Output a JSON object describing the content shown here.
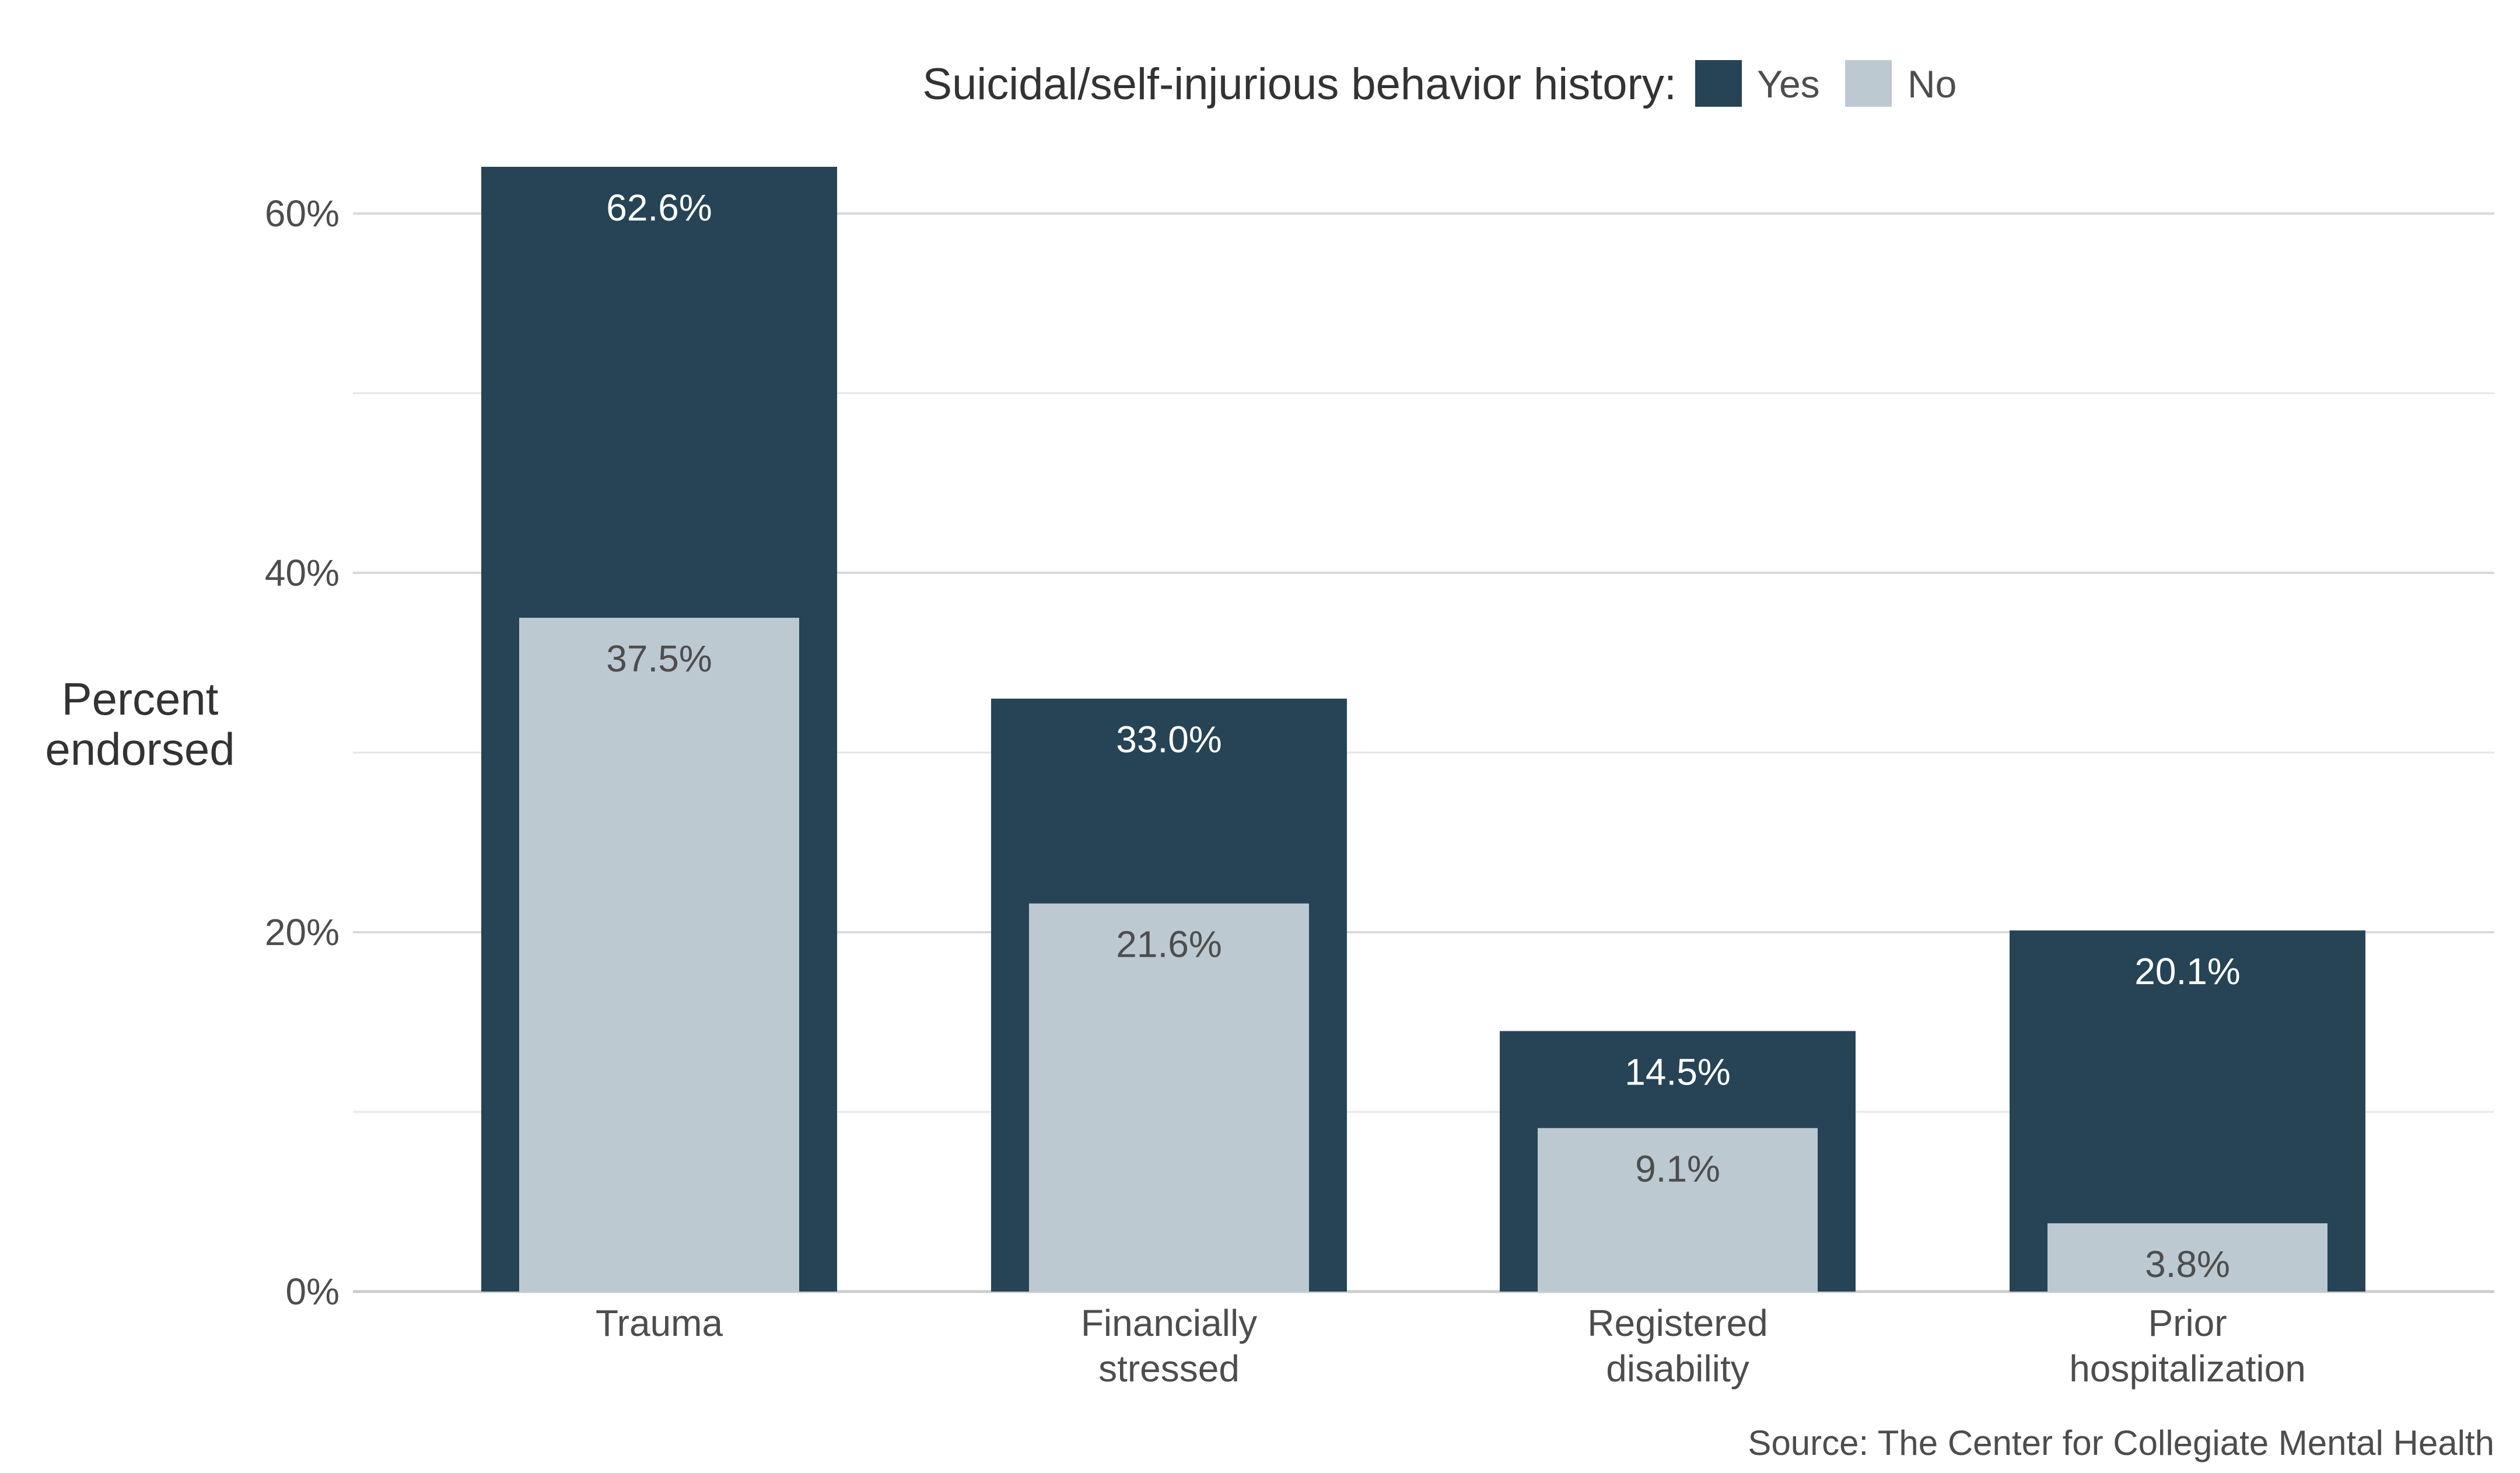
{
  "legend": {
    "title": "Suicidal/self-injurious behavior history:",
    "position": "top"
  },
  "source": "Source: The Center for Collegiate Mental Health",
  "colors": {
    "yes": "#264455",
    "no": "#bcc9d1",
    "grid": "#d9d9d9",
    "text": "#4d4d4d",
    "label_on_dark": "#ffffff",
    "label_on_light": "#4d4d4d"
  },
  "chart_data": {
    "type": "bar",
    "grouping": "overlapping",
    "categories": [
      "Trauma",
      "Financially\nstressed",
      "Registered\ndisability",
      "Prior\nhospitalization"
    ],
    "series": [
      {
        "name": "Yes",
        "values": [
          62.6,
          33.0,
          14.5,
          20.1
        ],
        "labels": [
          "62.6%",
          "33.0%",
          "14.5%",
          "20.1%"
        ]
      },
      {
        "name": "No",
        "values": [
          37.5,
          21.6,
          9.1,
          3.8
        ],
        "labels": [
          "37.5%",
          "21.6%",
          "9.1%",
          "3.8%"
        ]
      }
    ],
    "ylabel": "Percent\nendorsed",
    "xlabel": "",
    "ylim": [
      0,
      62.6
    ],
    "yticks": [
      0,
      20,
      40,
      60
    ],
    "ytick_labels": [
      "0%",
      "20%",
      "40%",
      "60%"
    ],
    "minor_gridlines": [
      10,
      30,
      50
    ],
    "grid": true
  }
}
